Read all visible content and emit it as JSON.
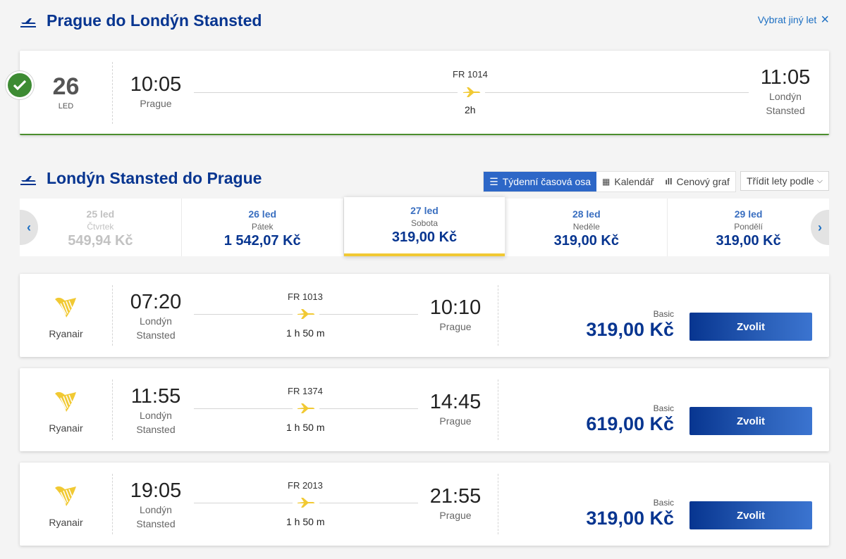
{
  "outbound": {
    "title": "Prague do Londýn Stansted",
    "change_link": "Vybrat jiný let",
    "date_day": "26",
    "date_month": "LED",
    "dep_time": "10:05",
    "dep_city": "Prague",
    "flight_number": "FR 1014",
    "duration": "2h",
    "arr_time": "11:05",
    "arr_city_line1": "Londýn",
    "arr_city_line2": "Stansted"
  },
  "inbound": {
    "title": "Londýn Stansted do Prague",
    "views": {
      "weekly": "Týdenní časová osa",
      "calendar": "Kalendář",
      "price_graph": "Cenový graf",
      "sort": "Třídit lety podle"
    },
    "dates": [
      {
        "label": "25 led",
        "day": "Čtvrtek",
        "price": "549,94 Kč",
        "state": "disabled"
      },
      {
        "label": "26 led",
        "day": "Pátek",
        "price": "1 542,07 Kč",
        "state": "normal"
      },
      {
        "label": "27 led",
        "day": "Sobota",
        "price": "319,00 Kč",
        "state": "selected"
      },
      {
        "label": "28 led",
        "day": "Neděle",
        "price": "319,00 Kč",
        "state": "normal"
      },
      {
        "label": "29 led",
        "day": "Pondělí",
        "price": "319,00 Kč",
        "state": "normal"
      }
    ],
    "flights": [
      {
        "airline": "Ryanair",
        "dep_time": "07:20",
        "dep_city1": "Londýn",
        "dep_city2": "Stansted",
        "flight_number": "FR 1013",
        "duration": "1 h 50 m",
        "arr_time": "10:10",
        "arr_city": "Prague",
        "fare": "Basic",
        "price": "319,00 Kč",
        "button": "Zvolit"
      },
      {
        "airline": "Ryanair",
        "dep_time": "11:55",
        "dep_city1": "Londýn",
        "dep_city2": "Stansted",
        "flight_number": "FR 1374",
        "duration": "1 h 50 m",
        "arr_time": "14:45",
        "arr_city": "Prague",
        "fare": "Basic",
        "price": "619,00 Kč",
        "button": "Zvolit"
      },
      {
        "airline": "Ryanair",
        "dep_time": "19:05",
        "dep_city1": "Londýn",
        "dep_city2": "Stansted",
        "flight_number": "FR 2013",
        "duration": "1 h 50 m",
        "arr_time": "21:55",
        "arr_city": "Prague",
        "fare": "Basic",
        "price": "319,00 Kč",
        "button": "Zvolit"
      }
    ]
  },
  "colors": {
    "brand_blue": "#073590",
    "accent_yellow": "#f1c933",
    "success_green": "#3d8b33",
    "link_blue": "#1b6ec2"
  },
  "icons": [
    "plane-takeoff-icon",
    "close-icon",
    "check-icon",
    "plane-icon",
    "list-icon",
    "calendar-icon",
    "bar-chart-icon",
    "chevron-down-icon",
    "chevron-left-icon",
    "chevron-right-icon",
    "ryanair-harp-logo"
  ]
}
